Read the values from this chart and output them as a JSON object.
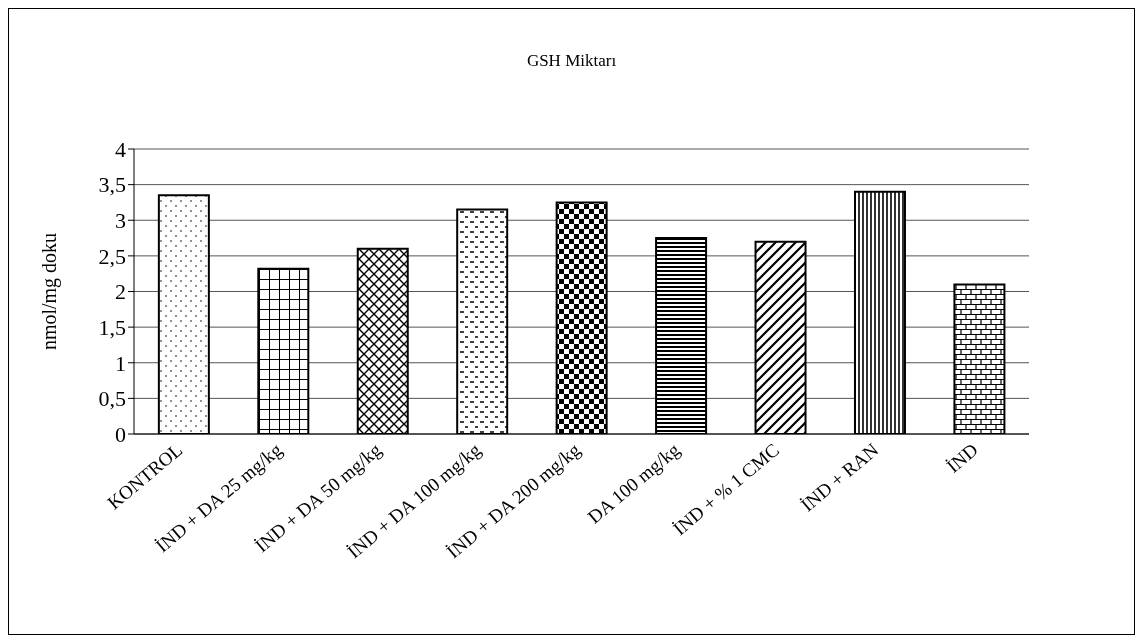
{
  "chart_data": {
    "type": "bar",
    "title": "GSH Miktarı",
    "ylabel": "nmol/mg doku",
    "categories": [
      "KONTROL",
      "İND + DA 25 mg/kg",
      "İND + DA 50 mg/kg",
      "İND + DA 100 mg/kg",
      "İND + DA 200 mg/kg",
      "DA 100 mg/kg",
      "İND + % 1  CMC",
      "İND + RAN",
      "İND"
    ],
    "values": [
      3.35,
      2.32,
      2.6,
      3.15,
      3.25,
      2.75,
      2.7,
      3.4,
      2.1
    ],
    "colors": [
      "#000000",
      "#000000",
      "#000000",
      "#000000",
      "#000000",
      "#000000",
      "#000000",
      "#000000",
      "#000000"
    ],
    "ylim": [
      0,
      4
    ],
    "yticks": [
      0,
      {
        "value": 0.5,
        "label": "0,5"
      },
      1,
      {
        "value": 1.5,
        "label": "1,5"
      },
      2,
      {
        "value": 2.5,
        "label": "2,5"
      },
      3,
      {
        "value": 3.5,
        "label": "3,5"
      },
      4
    ],
    "grid": "y",
    "legend": false
  }
}
